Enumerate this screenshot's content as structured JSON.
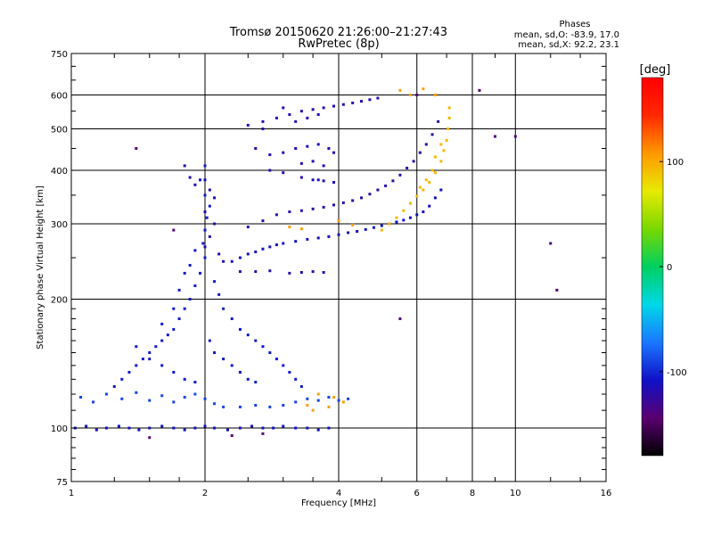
{
  "chart_data": {
    "type": "scatter",
    "title": "Tromsø 20150620 21:26:00–21:27:43",
    "subtitle": "RwPretec (8p)",
    "xlabel": "Frequency [MHz]",
    "ylabel": "Stationary phase Virtual Height [km]",
    "x_scale": "log",
    "y_scale": "log",
    "xlim": [
      1,
      16
    ],
    "ylim": [
      75,
      750
    ],
    "x_ticks": [
      1,
      2,
      4,
      6,
      8,
      10,
      16
    ],
    "x_tick_labels": [
      "1",
      "2",
      "4",
      "6",
      "8",
      "10",
      "16"
    ],
    "x_major_grid": [
      2,
      4,
      6,
      8,
      10
    ],
    "y_ticks": [
      75,
      100,
      200,
      300,
      400,
      500,
      600,
      750
    ],
    "y_tick_labels": [
      "75",
      "100",
      "200",
      "300",
      "400",
      "500",
      "600",
      "750"
    ],
    "y_major_grid": [
      100,
      200,
      300,
      400,
      500,
      600
    ],
    "grid": true,
    "legend": {
      "title": "Phases",
      "line1": "mean, sd,O: -83.9, 17.0",
      "line2": "mean, sd,X:  92.2, 23.1",
      "placement": "top-right"
    },
    "colorbar": {
      "label": "[deg]",
      "range": [
        -180,
        180
      ],
      "ticks": [
        100,
        0,
        -100
      ],
      "tick_labels": [
        "100",
        "0",
        "-100"
      ],
      "placement": "right",
      "colors": [
        "#000000",
        "#5a0070",
        "#1010c8",
        "#1a78ff",
        "#00d8e8",
        "#00d060",
        "#7ad800",
        "#e8ea00",
        "#ff9800",
        "#ff2800",
        "#ff0000"
      ]
    },
    "series": [
      {
        "type": "scatter",
        "points": [
          [
            1.02,
            100
          ],
          [
            1.08,
            101
          ],
          [
            1.14,
            99
          ],
          [
            1.2,
            100
          ],
          [
            1.28,
            101
          ],
          [
            1.35,
            100
          ],
          [
            1.42,
            99
          ],
          [
            1.5,
            100
          ],
          [
            1.6,
            101
          ],
          [
            1.7,
            100
          ],
          [
            1.8,
            99
          ],
          [
            1.9,
            100
          ],
          [
            2.0,
            101
          ],
          [
            2.1,
            100
          ],
          [
            2.25,
            99
          ],
          [
            2.4,
            100
          ],
          [
            2.55,
            101
          ],
          [
            2.7,
            100
          ],
          [
            2.85,
            100
          ],
          [
            3.0,
            101
          ],
          [
            3.2,
            100
          ],
          [
            3.4,
            100
          ],
          [
            3.6,
            99
          ],
          [
            3.8,
            100
          ]
        ],
        "phase": -110
      },
      {
        "type": "scatter",
        "points": [
          [
            1.05,
            118
          ],
          [
            1.12,
            115
          ],
          [
            1.2,
            120
          ],
          [
            1.3,
            117
          ],
          [
            1.4,
            121
          ],
          [
            1.5,
            116
          ],
          [
            1.6,
            119
          ],
          [
            1.7,
            115
          ],
          [
            1.8,
            118
          ],
          [
            1.9,
            120
          ],
          [
            2.0,
            117
          ],
          [
            2.1,
            114
          ],
          [
            2.2,
            112
          ],
          [
            2.4,
            112
          ],
          [
            2.6,
            113
          ],
          [
            2.8,
            112
          ],
          [
            3.0,
            113
          ],
          [
            3.2,
            115
          ],
          [
            3.4,
            117
          ],
          [
            3.6,
            116
          ],
          [
            3.8,
            118
          ],
          [
            4.0,
            116
          ],
          [
            4.2,
            117
          ]
        ],
        "phase": -90
      },
      {
        "type": "scatter",
        "points": [
          [
            1.25,
            125
          ],
          [
            1.3,
            130
          ],
          [
            1.35,
            135
          ],
          [
            1.4,
            140
          ],
          [
            1.45,
            145
          ],
          [
            1.5,
            150
          ],
          [
            1.55,
            155
          ],
          [
            1.6,
            160
          ],
          [
            1.65,
            165
          ],
          [
            1.7,
            170
          ],
          [
            1.75,
            180
          ],
          [
            1.8,
            190
          ],
          [
            1.85,
            200
          ],
          [
            1.9,
            215
          ],
          [
            1.95,
            230
          ],
          [
            2.0,
            250
          ],
          [
            1.98,
            270
          ],
          [
            2.0,
            290
          ],
          [
            2.02,
            310
          ],
          [
            2.05,
            330
          ],
          [
            2.0,
            350
          ],
          [
            1.95,
            380
          ],
          [
            2.0,
            410
          ],
          [
            1.9,
            260
          ],
          [
            1.85,
            240
          ],
          [
            2.1,
            220
          ],
          [
            2.15,
            205
          ],
          [
            2.2,
            190
          ],
          [
            2.3,
            180
          ],
          [
            2.4,
            170
          ],
          [
            2.5,
            165
          ],
          [
            2.6,
            160
          ],
          [
            2.7,
            155
          ],
          [
            2.8,
            150
          ],
          [
            2.9,
            145
          ],
          [
            3.0,
            140
          ],
          [
            3.1,
            135
          ],
          [
            3.2,
            130
          ],
          [
            3.3,
            125
          ],
          [
            2.05,
            160
          ],
          [
            2.1,
            150
          ],
          [
            2.2,
            145
          ],
          [
            2.3,
            140
          ],
          [
            2.4,
            135
          ],
          [
            2.5,
            130
          ],
          [
            2.6,
            128
          ],
          [
            1.4,
            155
          ],
          [
            1.5,
            145
          ],
          [
            1.6,
            140
          ],
          [
            1.7,
            135
          ],
          [
            1.8,
            130
          ],
          [
            1.9,
            128
          ],
          [
            1.6,
            175
          ],
          [
            1.7,
            190
          ],
          [
            1.75,
            210
          ],
          [
            1.8,
            230
          ]
        ],
        "phase": -105
      },
      {
        "type": "scatter",
        "points": [
          [
            1.8,
            410
          ],
          [
            1.85,
            385
          ],
          [
            1.9,
            370
          ],
          [
            2.0,
            380
          ],
          [
            2.05,
            360
          ],
          [
            2.1,
            345
          ],
          [
            2.0,
            320
          ],
          [
            2.1,
            300
          ],
          [
            2.05,
            280
          ],
          [
            2.0,
            265
          ],
          [
            2.15,
            255
          ],
          [
            2.2,
            245
          ]
        ],
        "phase": -115
      },
      {
        "type": "scatter",
        "points": [
          [
            2.3,
            245
          ],
          [
            2.4,
            250
          ],
          [
            2.5,
            255
          ],
          [
            2.6,
            258
          ],
          [
            2.7,
            262
          ],
          [
            2.8,
            265
          ],
          [
            2.9,
            268
          ],
          [
            3.0,
            270
          ],
          [
            3.2,
            273
          ],
          [
            3.4,
            276
          ],
          [
            3.6,
            278
          ],
          [
            3.8,
            280
          ],
          [
            4.0,
            283
          ],
          [
            4.2,
            286
          ],
          [
            4.4,
            288
          ],
          [
            4.6,
            291
          ],
          [
            4.8,
            294
          ],
          [
            5.0,
            297
          ],
          [
            5.2,
            300
          ],
          [
            5.4,
            303
          ],
          [
            5.6,
            306
          ],
          [
            5.8,
            310
          ],
          [
            6.0,
            315
          ],
          [
            6.2,
            320
          ],
          [
            6.4,
            330
          ],
          [
            6.6,
            345
          ],
          [
            6.8,
            360
          ]
        ],
        "phase": -110
      },
      {
        "type": "scatter",
        "points": [
          [
            2.5,
            295
          ],
          [
            2.7,
            305
          ],
          [
            2.9,
            315
          ],
          [
            3.1,
            320
          ],
          [
            3.3,
            322
          ],
          [
            3.5,
            325
          ],
          [
            3.7,
            328
          ],
          [
            3.9,
            332
          ],
          [
            4.1,
            336
          ],
          [
            4.3,
            340
          ],
          [
            4.5,
            345
          ],
          [
            4.7,
            352
          ],
          [
            4.9,
            360
          ],
          [
            5.1,
            368
          ],
          [
            5.3,
            378
          ],
          [
            5.5,
            390
          ],
          [
            5.7,
            405
          ],
          [
            5.9,
            420
          ],
          [
            6.1,
            440
          ],
          [
            6.3,
            460
          ],
          [
            6.5,
            485
          ],
          [
            6.7,
            520
          ]
        ],
        "phase": -120
      },
      {
        "type": "scatter",
        "points": [
          [
            5.0,
            290
          ],
          [
            5.2,
            300
          ],
          [
            5.4,
            310
          ],
          [
            5.6,
            322
          ],
          [
            5.8,
            335
          ],
          [
            6.0,
            348
          ],
          [
            6.2,
            360
          ],
          [
            6.4,
            375
          ],
          [
            6.6,
            395
          ],
          [
            6.8,
            420
          ],
          [
            6.9,
            445
          ],
          [
            7.0,
            470
          ],
          [
            7.05,
            500
          ],
          [
            7.1,
            530
          ],
          [
            7.1,
            560
          ],
          [
            6.6,
            430
          ],
          [
            6.8,
            460
          ],
          [
            6.5,
            400
          ],
          [
            6.3,
            380
          ],
          [
            6.1,
            365
          ]
        ],
        "phase": 95
      },
      {
        "type": "scatter",
        "points": [
          [
            3.0,
            440
          ],
          [
            3.2,
            450
          ],
          [
            3.4,
            455
          ],
          [
            3.6,
            460
          ],
          [
            3.8,
            450
          ],
          [
            3.9,
            440
          ],
          [
            3.5,
            420
          ],
          [
            3.7,
            410
          ],
          [
            3.3,
            415
          ],
          [
            2.8,
            400
          ],
          [
            3.0,
            395
          ],
          [
            3.3,
            385
          ],
          [
            3.6,
            380
          ],
          [
            3.9,
            375
          ],
          [
            2.6,
            450
          ],
          [
            2.8,
            435
          ],
          [
            3.5,
            380
          ],
          [
            3.7,
            378
          ]
        ],
        "phase": -115
      },
      {
        "type": "scatter",
        "points": [
          [
            2.5,
            510
          ],
          [
            2.7,
            520
          ],
          [
            2.9,
            530
          ],
          [
            3.1,
            540
          ],
          [
            3.3,
            550
          ],
          [
            3.5,
            555
          ],
          [
            3.7,
            560
          ],
          [
            3.9,
            565
          ],
          [
            4.1,
            570
          ],
          [
            4.3,
            575
          ],
          [
            4.5,
            580
          ],
          [
            4.7,
            585
          ],
          [
            4.9,
            590
          ],
          [
            3.2,
            520
          ],
          [
            3.4,
            530
          ],
          [
            3.6,
            540
          ],
          [
            2.7,
            500
          ],
          [
            3.0,
            560
          ]
        ],
        "phase": -118
      },
      {
        "type": "scatter",
        "points": [
          [
            2.4,
            232
          ],
          [
            2.6,
            232
          ],
          [
            2.8,
            233
          ],
          [
            3.1,
            230
          ],
          [
            3.3,
            231
          ],
          [
            3.5,
            232
          ],
          [
            3.7,
            231
          ]
        ],
        "phase": -120
      },
      {
        "type": "scatter",
        "points": [
          [
            3.1,
            295
          ],
          [
            3.3,
            292
          ],
          [
            4.0,
            305
          ],
          [
            4.3,
            298
          ],
          [
            3.5,
            110
          ],
          [
            3.6,
            120
          ],
          [
            3.9,
            118
          ],
          [
            4.1,
            115
          ],
          [
            3.8,
            112
          ],
          [
            3.4,
            113
          ],
          [
            5.5,
            615
          ],
          [
            5.8,
            600
          ],
          [
            6.2,
            620
          ],
          [
            6.6,
            600
          ]
        ],
        "phase": 105
      },
      {
        "type": "scatter",
        "points": [
          [
            1.4,
            450
          ],
          [
            1.7,
            290
          ],
          [
            9.0,
            480
          ],
          [
            8.3,
            615
          ],
          [
            12.0,
            270
          ],
          [
            12.4,
            210
          ],
          [
            6.0,
            600
          ],
          [
            5.5,
            180
          ],
          [
            10.0,
            480
          ],
          [
            1.5,
            95
          ],
          [
            2.3,
            96
          ],
          [
            2.7,
            97
          ]
        ],
        "phase": -140
      }
    ]
  }
}
